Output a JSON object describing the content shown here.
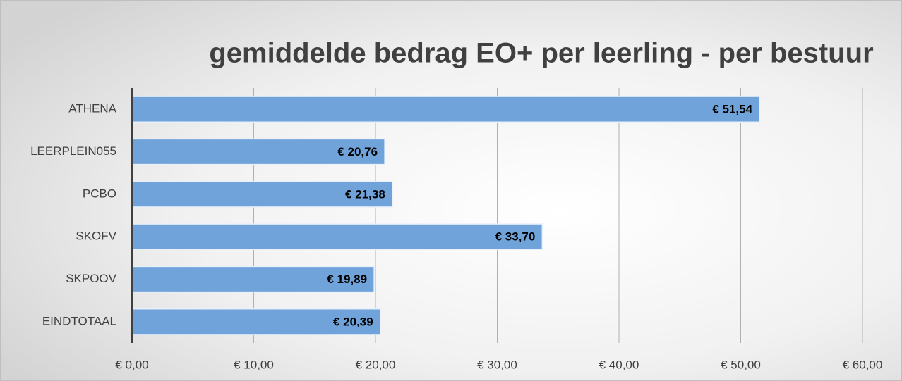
{
  "chart_data": {
    "type": "bar",
    "orientation": "horizontal",
    "title": "gemiddelde bedrag EO+ per leerling - per bestuur",
    "categories": [
      "ATHENA",
      "LEERPLEIN055",
      "PCBO",
      "SKOFV",
      "SKPOOV",
      "EINDTOTAAL"
    ],
    "values": [
      51.54,
      20.76,
      21.38,
      33.7,
      19.89,
      20.39
    ],
    "value_labels": [
      "€ 51,54",
      "€ 20,76",
      "€ 21,38",
      "€ 33,70",
      "€ 19,89",
      "€ 20,39"
    ],
    "color": "#6fa3da",
    "xlim": [
      0,
      60
    ],
    "xticks": [
      {
        "value": 0,
        "label": "€ 0,00"
      },
      {
        "value": 10,
        "label": "€ 10,00"
      },
      {
        "value": 20,
        "label": "€ 20,00"
      },
      {
        "value": 30,
        "label": "€ 30,00"
      },
      {
        "value": 40,
        "label": "€ 40,00"
      },
      {
        "value": 50,
        "label": "€ 50,00"
      },
      {
        "value": 60,
        "label": "€ 60,00"
      }
    ],
    "grid": true
  }
}
